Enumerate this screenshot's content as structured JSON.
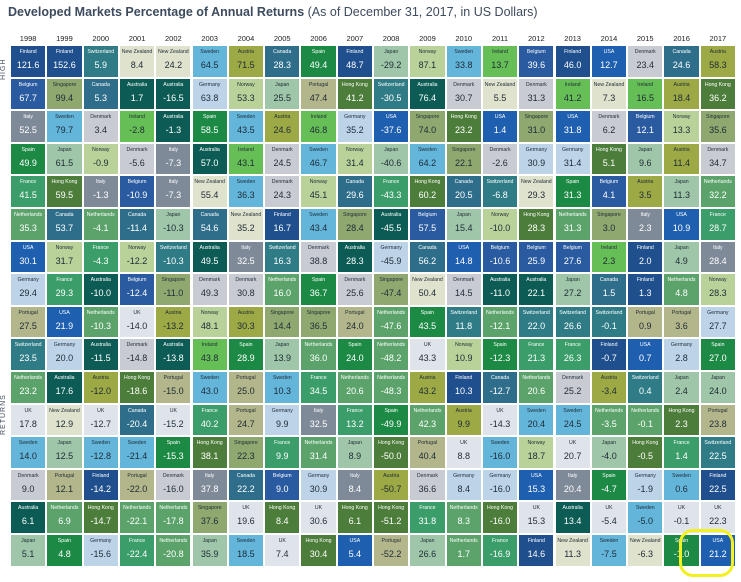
{
  "title": {
    "main": "Developed Markets Percentage of Annual Returns",
    "sub": "(As of December 31, 2017, in US Dollars)"
  },
  "side_labels": {
    "high": "HIGH",
    "returns": "RETURNS"
  },
  "highlight_color": "#f3f020",
  "chart_data": {
    "type": "table",
    "title": "Developed Markets Percentage of Annual Returns",
    "subtitle": "(As of December 31, 2017, in US Dollars)",
    "years": [
      "1998",
      "1999",
      "2000",
      "2001",
      "2002",
      "2003",
      "2004",
      "2005",
      "2006",
      "2007",
      "2008",
      "2009",
      "2010",
      "2011",
      "2012",
      "2013",
      "2014",
      "2015",
      "2016",
      "2017"
    ],
    "country_colors": {
      "Finland": "#1f4f8c",
      "Belgium": "#2a5aa0",
      "Italy": "#7f8a99",
      "Spain": "#1c8a45",
      "France": "#3b9d6a",
      "Canada": "#2e6e8a",
      "USA": "#1f5fb0",
      "Germany": "#bdd4e8",
      "Portugal": "#b3b68a",
      "Switzerland": "#2f7c86",
      "Netherlands": "#5ba36a",
      "UK": "#dfe4ea",
      "Sweden": "#63b5da",
      "Denmark": "#c9cbd2",
      "Australia": "#0c5c55",
      "Japan": "#9fc6a8",
      "Singapore": "#8fa870",
      "New Zealand": "#dfe2cc",
      "Norway": "#b8d29a",
      "Hong Kong": "#4d7d3a",
      "Austria": "#9ca945",
      "Ireland": "#66bf56"
    },
    "rows": [
      [
        [
          "Finland",
          121.6
        ],
        [
          "Finland",
          152.6
        ],
        [
          "Switzerland",
          5.9
        ],
        [
          "New Zealand",
          8.4
        ],
        [
          "New Zealand",
          24.2
        ],
        [
          "Sweden",
          64.5
        ],
        [
          "Austria",
          71.5
        ],
        [
          "Canada",
          28.3
        ],
        [
          "Spain",
          49.4
        ],
        [
          "Finland",
          48.7
        ],
        [
          "Japan",
          -29.2
        ],
        [
          "Norway",
          87.1
        ],
        [
          "Sweden",
          33.8
        ],
        [
          "Ireland",
          13.7
        ],
        [
          "Belgium",
          39.6
        ],
        [
          "Finland",
          46.0
        ],
        [
          "USA",
          12.7
        ],
        [
          "Denmark",
          23.4
        ],
        [
          "Canada",
          24.6
        ],
        [
          "Austria",
          58.3
        ]
      ],
      [
        [
          "Belgium",
          67.7
        ],
        [
          "Singapore",
          99.4
        ],
        [
          "Canada",
          5.3
        ],
        [
          "Australia",
          1.7
        ],
        [
          "Australia",
          -16.5
        ],
        [
          "Germany",
          63.8
        ],
        [
          "Norway",
          53.3
        ],
        [
          "Japan",
          25.5
        ],
        [
          "Portugal",
          47.4
        ],
        [
          "Hong Kong",
          41.2
        ],
        [
          "Switzerland",
          -30.5
        ],
        [
          "Australia",
          76.4
        ],
        [
          "Denmark",
          30.7
        ],
        [
          "New Zealand",
          5.5
        ],
        [
          "Denmark",
          31.3
        ],
        [
          "Ireland",
          41.2
        ],
        [
          "New Zealand",
          7.3
        ],
        [
          "Ireland",
          16.5
        ],
        [
          "Austria",
          18.4
        ],
        [
          "Hong Kong",
          36.2
        ]
      ],
      [
        [
          "Italy",
          52.5
        ],
        [
          "Sweden",
          79.7
        ],
        [
          "Denmark",
          3.4
        ],
        [
          "Ireland",
          -2.8
        ],
        [
          "Australia",
          -1.3
        ],
        [
          "Spain",
          58.5
        ],
        [
          "Sweden",
          43.5
        ],
        [
          "Austria",
          24.6
        ],
        [
          "Ireland",
          46.8
        ],
        [
          "Germany",
          35.2
        ],
        [
          "USA",
          -37.6
        ],
        [
          "Singapore",
          74.0
        ],
        [
          "Hong Kong",
          23.2
        ],
        [
          "USA",
          1.4
        ],
        [
          "Singapore",
          31.0
        ],
        [
          "USA",
          31.8
        ],
        [
          "Denmark",
          6.2
        ],
        [
          "Belgium",
          12.1
        ],
        [
          "Norway",
          13.3
        ],
        [
          "Singapore",
          35.6
        ]
      ],
      [
        [
          "Spain",
          49.9
        ],
        [
          "Japan",
          61.5
        ],
        [
          "Norway",
          -0.9
        ],
        [
          "Denmark",
          -5.6
        ],
        [
          "Italy",
          -7.3
        ],
        [
          "Australia",
          57.0
        ],
        [
          "Ireland",
          43.1
        ],
        [
          "Denmark",
          24.5
        ],
        [
          "Sweden",
          46.7
        ],
        [
          "Norway",
          31.4
        ],
        [
          "Japan",
          -40.6
        ],
        [
          "Sweden",
          64.2
        ],
        [
          "Singapore",
          22.1
        ],
        [
          "Denmark",
          -2.6
        ],
        [
          "Germany",
          30.9
        ],
        [
          "Germany",
          31.4
        ],
        [
          "Hong Kong",
          5.1
        ],
        [
          "Japan",
          9.6
        ],
        [
          "Austria",
          11.4
        ],
        [
          "Denmark",
          34.7
        ]
      ],
      [
        [
          "France",
          41.5
        ],
        [
          "Hong Kong",
          59.5
        ],
        [
          "Italy",
          -1.3
        ],
        [
          "Belgium",
          -10.9
        ],
        [
          "Italy",
          -7.3
        ],
        [
          "New Zealand",
          55.4
        ],
        [
          "Sweden",
          36.3
        ],
        [
          "Denmark",
          24.3
        ],
        [
          "Norway",
          45.1
        ],
        [
          "Canada",
          29.6
        ],
        [
          "France",
          -43.3
        ],
        [
          "Hong Kong",
          60.2
        ],
        [
          "Canada",
          20.5
        ],
        [
          "Switzerland",
          -6.8
        ],
        [
          "New Zealand",
          29.3
        ],
        [
          "Spain",
          31.3
        ],
        [
          "Belgium",
          4.1
        ],
        [
          "Austria",
          3.5
        ],
        [
          "Japan",
          11.3
        ],
        [
          "Netherlands",
          32.2
        ]
      ],
      [
        [
          "Netherlands",
          35.3
        ],
        [
          "Canada",
          53.7
        ],
        [
          "Netherlands",
          -4.1
        ],
        [
          "Canada",
          -11.4
        ],
        [
          "Japan",
          -10.3
        ],
        [
          "Canada",
          54.6
        ],
        [
          "New Zealand",
          35.2
        ],
        [
          "Finland",
          16.7
        ],
        [
          "Sweden",
          43.4
        ],
        [
          "Singapore",
          28.4
        ],
        [
          "Australia",
          -45.5
        ],
        [
          "Belgium",
          57.5
        ],
        [
          "Japan",
          15.4
        ],
        [
          "Norway",
          -10.0
        ],
        [
          "Hong Kong",
          28.3
        ],
        [
          "Netherlands",
          31.3
        ],
        [
          "Singapore",
          3.0
        ],
        [
          "Italy",
          2.3
        ],
        [
          "USA",
          10.9
        ],
        [
          "France",
          28.7
        ]
      ],
      [
        [
          "USA",
          30.1
        ],
        [
          "Norway",
          31.7
        ],
        [
          "France",
          -4.3
        ],
        [
          "Norway",
          -12.2
        ],
        [
          "Switzerland",
          -10.3
        ],
        [
          "Australia",
          49.5
        ],
        [
          "Italy",
          32.5
        ],
        [
          "Switzerland",
          16.3
        ],
        [
          "Denmark",
          38.8
        ],
        [
          "Australia",
          28.3
        ],
        [
          "Germany",
          -45.9
        ],
        [
          "Canada",
          56.2
        ],
        [
          "USA",
          14.8
        ],
        [
          "Belgium",
          -10.6
        ],
        [
          "Belgium",
          25.9
        ],
        [
          "Belgium",
          27.6
        ],
        [
          "Ireland",
          2.3
        ],
        [
          "Finland",
          2.0
        ],
        [
          "Japan",
          4.9
        ],
        [
          "Italy",
          28.4
        ]
      ],
      [
        [
          "Germany",
          29.4
        ],
        [
          "France",
          29.3
        ],
        [
          "Australia",
          -10.0
        ],
        [
          "Belgium",
          -12.4
        ],
        [
          "Singapore",
          -11.0
        ],
        [
          "Denmark",
          49.3
        ],
        [
          "Denmark",
          30.8
        ],
        [
          "Netherlands",
          16.0
        ],
        [
          "Spain",
          36.7
        ],
        [
          "Denmark",
          25.6
        ],
        [
          "Singapore",
          -47.4
        ],
        [
          "New Zealand",
          50.4
        ],
        [
          "Denmark",
          14.5
        ],
        [
          "Australia",
          -11.0
        ],
        [
          "Australia",
          22.1
        ],
        [
          "Japan",
          27.2
        ],
        [
          "Canada",
          1.5
        ],
        [
          "Finland",
          1.3
        ],
        [
          "Netherlands",
          4.8
        ],
        [
          "Norway",
          28.3
        ]
      ],
      [
        [
          "Portugal",
          27.5
        ],
        [
          "USA",
          21.9
        ],
        [
          "Netherlands",
          -10.3
        ],
        [
          "UK",
          -14.0
        ],
        [
          "Austria",
          -13.2
        ],
        [
          "Norway",
          48.1
        ],
        [
          "Austria",
          30.3
        ],
        [
          "Singapore",
          14.4
        ],
        [
          "Singapore",
          36.5
        ],
        [
          "Portugal",
          24.0
        ],
        [
          "Netherlands",
          -47.6
        ],
        [
          "Spain",
          43.5
        ],
        [
          "Switzerland",
          11.8
        ],
        [
          "Netherlands",
          -12.1
        ],
        [
          "Switzerland",
          22.0
        ],
        [
          "Switzerland",
          26.6
        ],
        [
          "Switzerland",
          -0.1
        ],
        [
          "Portugal",
          0.9
        ],
        [
          "Portugal",
          3.6
        ],
        [
          "Germany",
          27.7
        ]
      ],
      [
        [
          "Switzerland",
          23.5
        ],
        [
          "Germany",
          20.0
        ],
        [
          "Australia",
          -11.5
        ],
        [
          "Denmark",
          -14.8
        ],
        [
          "Australia",
          -13.8
        ],
        [
          "Ireland",
          43.8
        ],
        [
          "Spain",
          28.9
        ],
        [
          "Japan",
          13.9
        ],
        [
          "Netherlands",
          36.0
        ],
        [
          "Spain",
          24.0
        ],
        [
          "Netherlands",
          -48.2
        ],
        [
          "UK",
          43.3
        ],
        [
          "Norway",
          10.9
        ],
        [
          "Spain",
          -12.3
        ],
        [
          "France",
          21.3
        ],
        [
          "France",
          26.3
        ],
        [
          "Finland",
          -0.7
        ],
        [
          "USA",
          0.7
        ],
        [
          "Germany",
          2.8
        ],
        [
          "Spain",
          27.0
        ]
      ],
      [
        [
          "Netherlands",
          23.2
        ],
        [
          "Australia",
          17.6
        ],
        [
          "Austria",
          -12.0
        ],
        [
          "Hong Kong",
          -18.6
        ],
        [
          "Portugal",
          -15.0
        ],
        [
          "Sweden",
          43.0
        ],
        [
          "Portugal",
          25.0
        ],
        [
          "Sweden",
          10.3
        ],
        [
          "France",
          34.5
        ],
        [
          "Netherlands",
          20.6
        ],
        [
          "Netherlands",
          -48.3
        ],
        [
          "Austria",
          43.2
        ],
        [
          "Finland",
          10.3
        ],
        [
          "Canada",
          -12.7
        ],
        [
          "Netherlands",
          20.6
        ],
        [
          "Denmark",
          25.2
        ],
        [
          "Austria",
          -3.4
        ],
        [
          "Switzerland",
          0.4
        ],
        [
          "Japan",
          2.4
        ],
        [
          "Japan",
          24.0
        ]
      ],
      [
        [
          "UK",
          17.8
        ],
        [
          "New Zealand",
          12.9
        ],
        [
          "UK",
          -12.7
        ],
        [
          "Canada",
          -20.4
        ],
        [
          "UK",
          -15.2
        ],
        [
          "France",
          40.2
        ],
        [
          "Portugal",
          24.7
        ],
        [
          "Germany",
          9.9
        ],
        [
          "Italy",
          32.5
        ],
        [
          "France",
          13.2
        ],
        [
          "Spain",
          -49.9
        ],
        [
          "Netherlands",
          42.3
        ],
        [
          "Austria",
          9.9
        ],
        [
          "UK",
          -14.3
        ],
        [
          "Sweden",
          20.4
        ],
        [
          "Sweden",
          24.5
        ],
        [
          "Netherlands",
          -3.5
        ],
        [
          "Netherlands",
          -0.1
        ],
        [
          "Hong Kong",
          2.3
        ],
        [
          "Portugal",
          23.8
        ]
      ],
      [
        [
          "Sweden",
          14.0
        ],
        [
          "Japan",
          12.5
        ],
        [
          "Sweden",
          -12.8
        ],
        [
          "Sweden",
          -21.4
        ],
        [
          "Spain",
          -15.3
        ],
        [
          "Hong Kong",
          38.1
        ],
        [
          "Singapore",
          22.3
        ],
        [
          "France",
          9.9
        ],
        [
          "Netherlands",
          31.4
        ],
        [
          "Japan",
          8.9
        ],
        [
          "Hong Kong",
          -50.0
        ],
        [
          "Portugal",
          40.4
        ],
        [
          "UK",
          8.8
        ],
        [
          "Sweden",
          -16.0
        ],
        [
          "Norway",
          18.7
        ],
        [
          "UK",
          20.7
        ],
        [
          "Japan",
          -4.0
        ],
        [
          "Hong Kong",
          -0.5
        ],
        [
          "France",
          1.4
        ],
        [
          "Switzerland",
          22.5
        ]
      ],
      [
        [
          "Denmark",
          9.0
        ],
        [
          "Portugal",
          12.1
        ],
        [
          "Finland",
          -14.2
        ],
        [
          "Portugal",
          -22.0
        ],
        [
          "Denmark",
          -16.0
        ],
        [
          "Italy",
          37.8
        ],
        [
          "Canada",
          22.2
        ],
        [
          "Belgium",
          9.0
        ],
        [
          "Germany",
          30.9
        ],
        [
          "Italy",
          8.4
        ],
        [
          "Austria",
          -50.7
        ],
        [
          "Denmark",
          36.6
        ],
        [
          "Germany",
          8.4
        ],
        [
          "Germany",
          -16.0
        ],
        [
          "USA",
          15.3
        ],
        [
          "Italy",
          20.4
        ],
        [
          "Spain",
          -4.7
        ],
        [
          "Germany",
          -1.9
        ],
        [
          "Sweden",
          0.6
        ],
        [
          "Finland",
          22.5
        ]
      ],
      [
        [
          "Australia",
          6.1
        ],
        [
          "Netherlands",
          6.9
        ],
        [
          "Hong Kong",
          -14.7
        ],
        [
          "Netherlands",
          -22.1
        ],
        [
          "Netherlands",
          -17.8
        ],
        [
          "Singapore",
          37.6
        ],
        [
          "UK",
          19.6
        ],
        [
          "Hong Kong",
          8.4
        ],
        [
          "UK",
          30.6
        ],
        [
          "Hong Kong",
          6.1
        ],
        [
          "Hong Kong",
          -51.2
        ],
        [
          "France",
          31.8
        ],
        [
          "Netherlands",
          8.3
        ],
        [
          "Hong Kong",
          -16.0
        ],
        [
          "UK",
          15.3
        ],
        [
          "Australia",
          13.4
        ],
        [
          "UK",
          -5.4
        ],
        [
          "Sweden",
          -5.0
        ],
        [
          "UK",
          -0.1
        ],
        [
          "UK",
          22.3
        ]
      ],
      [
        [
          "Japan",
          5.1
        ],
        [
          "Spain",
          4.8
        ],
        [
          "Germany",
          -15.6
        ],
        [
          "France",
          -22.4
        ],
        [
          "Netherlands",
          -20.8
        ],
        [
          "Japan",
          35.9
        ],
        [
          "Sweden",
          18.5
        ],
        [
          "UK",
          7.4
        ],
        [
          "Hong Kong",
          30.4
        ],
        [
          "USA",
          5.4
        ],
        [
          "Portugal",
          -52.2
        ],
        [
          "Japan",
          26.6
        ],
        [
          "Netherlands",
          1.7
        ],
        [
          "France",
          -16.9
        ],
        [
          "Finland",
          14.6
        ],
        [
          "New Zealand",
          11.3
        ],
        [
          "Sweden",
          -7.5
        ],
        [
          "New Zealand",
          -6.3
        ],
        [
          "Spain",
          -1.0
        ],
        [
          "USA",
          21.2
        ]
      ]
    ]
  }
}
